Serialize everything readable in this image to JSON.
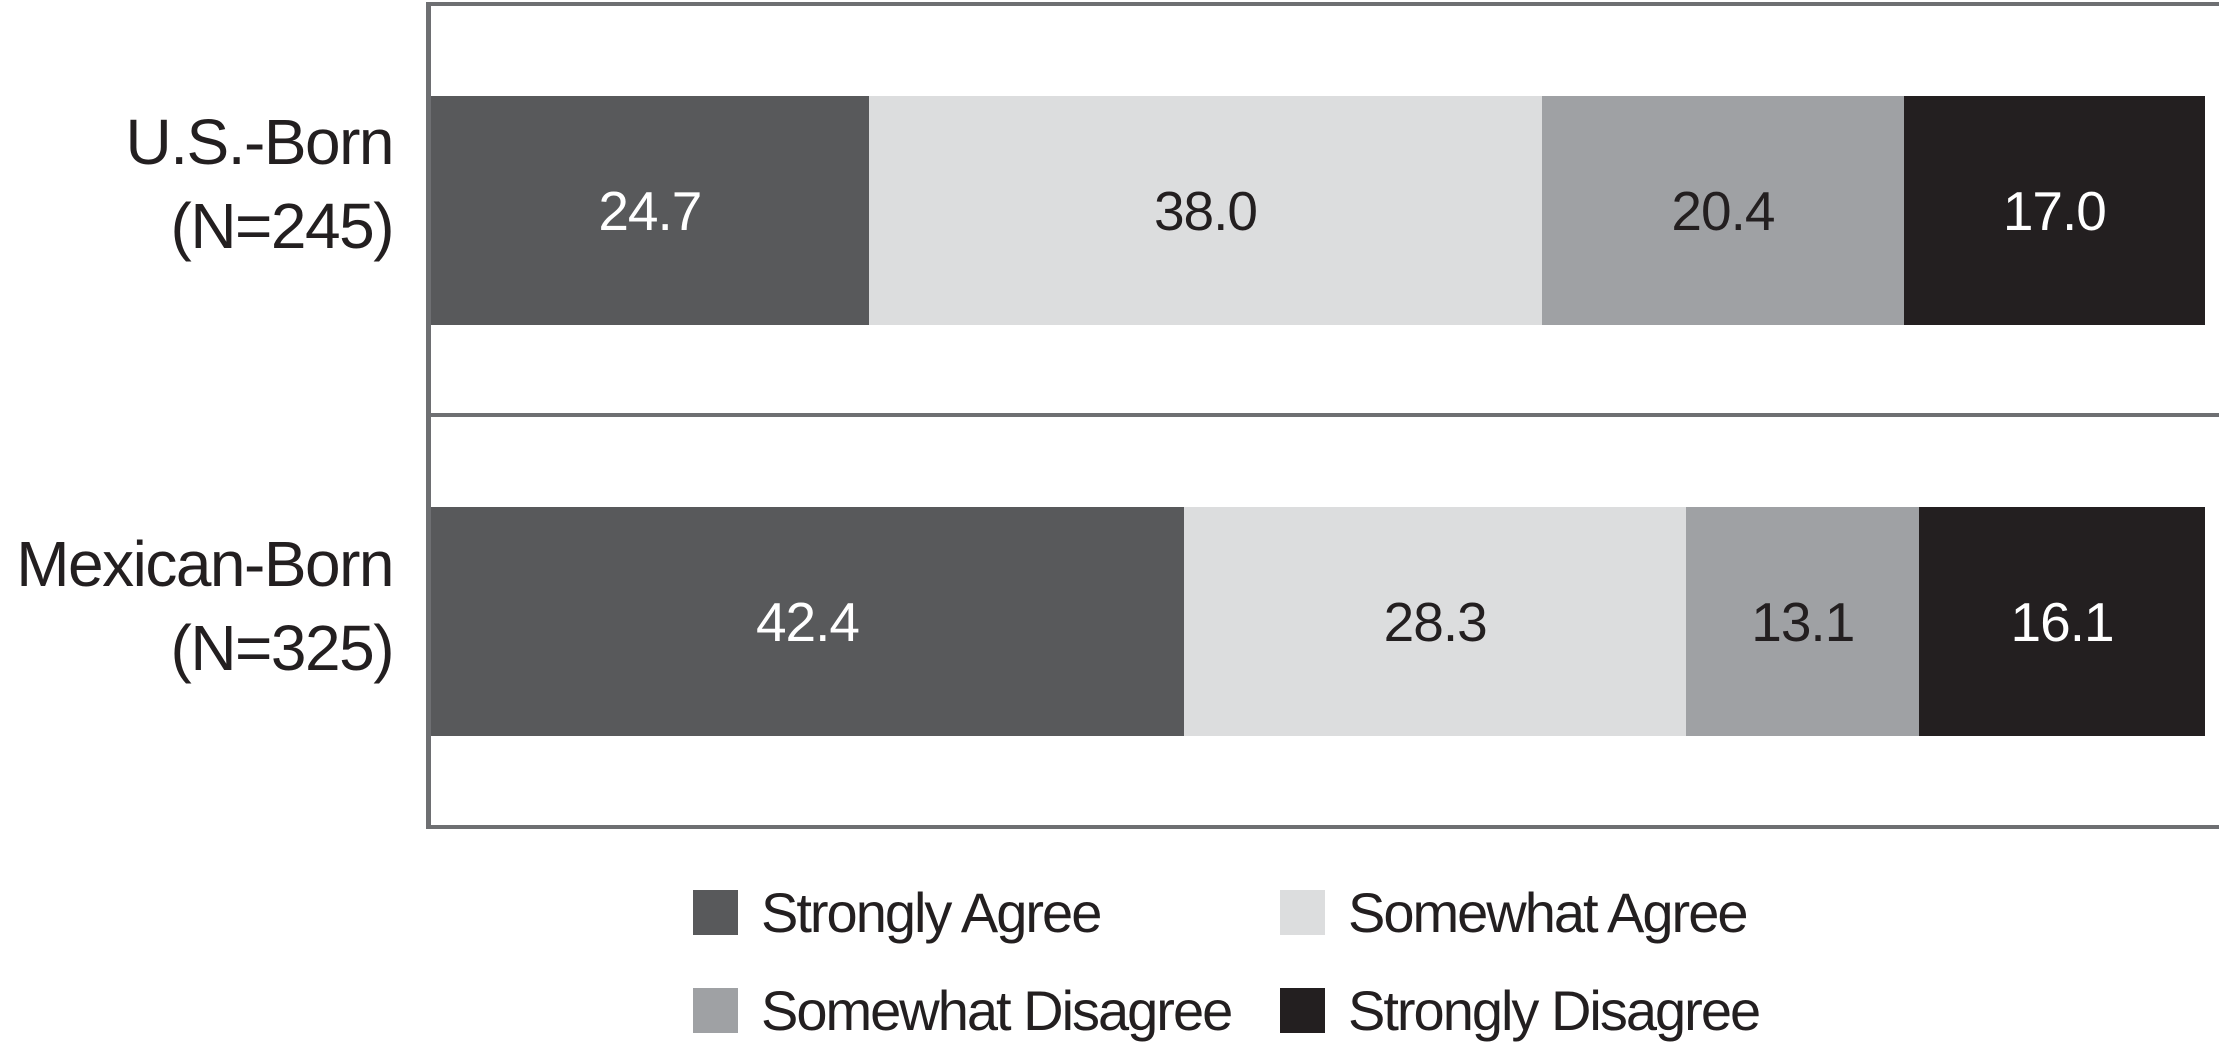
{
  "chart_data": {
    "type": "bar",
    "orientation": "horizontal-stacked",
    "unit": "percent",
    "title": "",
    "xlabel": "",
    "ylabel": "",
    "xlim": [
      0,
      100
    ],
    "grid": false,
    "legend_position": "bottom",
    "categories": [
      "U.S.-Born (N=245)",
      "Mexican-Born (N=325)"
    ],
    "rows": [
      {
        "label": "U.S.-Born",
        "n_label": "(N=245)",
        "values": [
          24.7,
          38.0,
          20.4,
          17.0
        ],
        "display": [
          "24.7",
          "38.0",
          "20.4",
          "17.0"
        ]
      },
      {
        "label": "Mexican-Born",
        "n_label": "(N=325)",
        "values": [
          42.4,
          28.3,
          13.1,
          16.1
        ],
        "display": [
          "42.4",
          "28.3",
          "13.1",
          "16.1"
        ]
      }
    ],
    "series": [
      {
        "name": "Strongly Agree",
        "color": "#58595b",
        "text_color": "#ffffff"
      },
      {
        "name": "Somewhat Agree",
        "color": "#dcddde",
        "text_color": "#231f20"
      },
      {
        "name": "Somewhat Disagree",
        "color": "#9fa1a4",
        "text_color": "#231f20"
      },
      {
        "name": "Strongly Disagree",
        "color": "#231f20",
        "text_color": "#ffffff"
      }
    ]
  },
  "colors": {
    "frame": "#6e6f72",
    "background": "#ffffff",
    "label_text": "#231f20"
  }
}
